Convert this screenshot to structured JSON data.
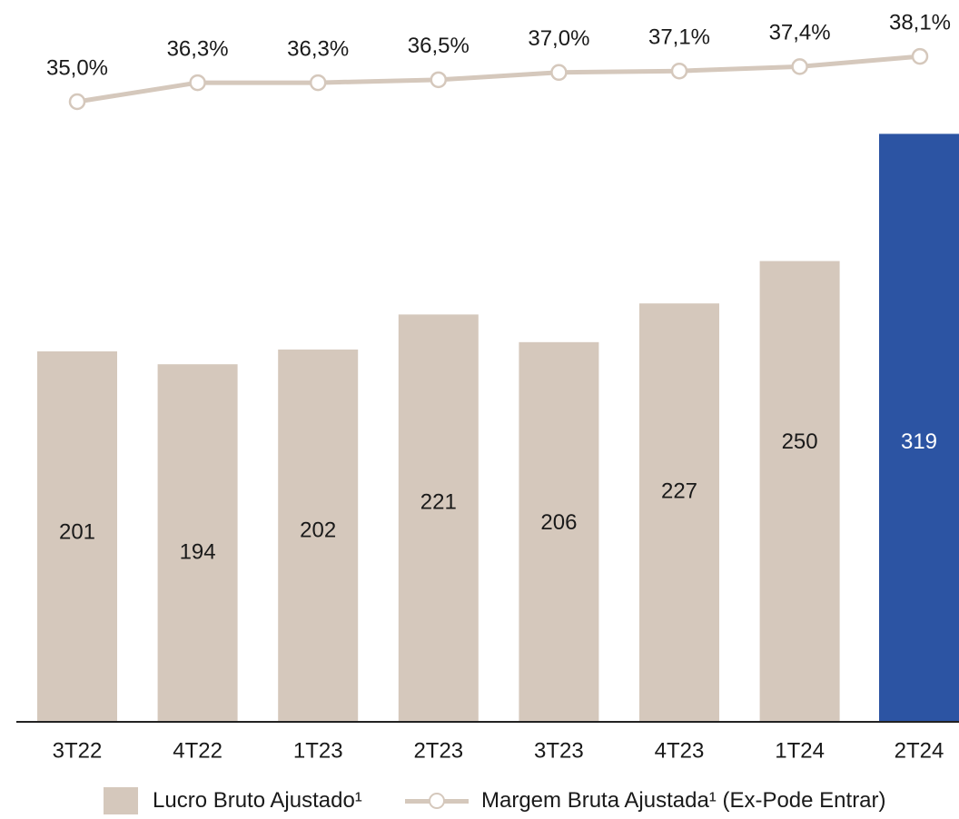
{
  "chart_data": {
    "type": "bar",
    "categories": [
      "3T22",
      "4T22",
      "1T23",
      "2T23",
      "3T23",
      "4T23",
      "1T24",
      "2T24"
    ],
    "series": [
      {
        "name": "Lucro Bruto Ajustado¹",
        "type": "bar",
        "values": [
          201,
          194,
          202,
          221,
          206,
          227,
          250,
          319
        ],
        "labels": [
          "201",
          "194",
          "202",
          "221",
          "206",
          "227",
          "250",
          "319"
        ],
        "color": "#d5c8bc",
        "highlight_color": "#2c54a3",
        "highlight_index": 7
      },
      {
        "name": "Margem Bruta Ajustada¹ (Ex-Pode Entrar)",
        "type": "line",
        "values": [
          35.0,
          36.3,
          36.3,
          36.5,
          37.0,
          37.1,
          37.4,
          38.1
        ],
        "labels": [
          "35,0%",
          "36,3%",
          "36,3%",
          "36,5%",
          "37,0%",
          "37,1%",
          "37,4%",
          "38,1%"
        ],
        "color": "#d5c8bc",
        "marker_fill": "#ffffff"
      }
    ],
    "title": "",
    "xlabel": "",
    "ylabel": "",
    "grid": false,
    "legend_position": "bottom"
  }
}
